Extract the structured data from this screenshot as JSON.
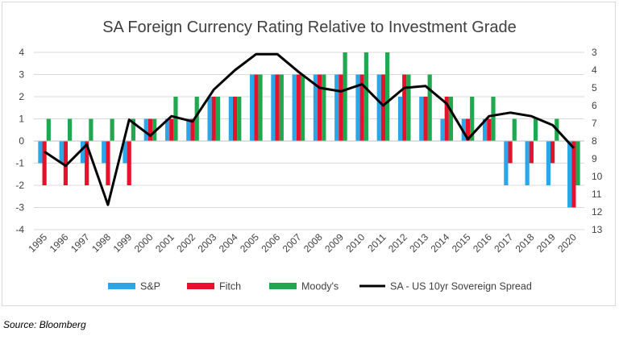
{
  "source_note": "Source: Bloomberg",
  "colors": {
    "sp": "#2aa7e8",
    "fitch": "#e8112d",
    "moodys": "#1fa84f",
    "spread": "#000000",
    "grid": "#d9d9d9"
  },
  "chart_data": {
    "type": "bar",
    "title": "SA Foreign Currency Rating Relative to Investment Grade",
    "categories": [
      "1995",
      "1996",
      "1997",
      "1998",
      "1999",
      "2000",
      "2001",
      "2002",
      "2003",
      "2004",
      "2005",
      "2006",
      "2007",
      "2008",
      "2009",
      "2010",
      "2011",
      "2012",
      "2013",
      "2014",
      "2015",
      "2016",
      "2017",
      "2018",
      "2019",
      "2020"
    ],
    "ylim": [
      -4,
      4
    ],
    "yticks": [
      4,
      3,
      2,
      1,
      0,
      -1,
      -2,
      -3,
      -4
    ],
    "y2lim": [
      3,
      13
    ],
    "y2ticks": [
      3,
      4,
      5,
      6,
      7,
      8,
      9,
      10,
      11,
      12,
      13
    ],
    "y2_inverted": true,
    "grid": true,
    "legend_position": "bottom",
    "series": [
      {
        "name": "S&P",
        "kind": "bar",
        "color_key": "sp",
        "values": [
          -1,
          -1,
          -1,
          -1,
          -1,
          1,
          1,
          1,
          2,
          2,
          3,
          3,
          3,
          3,
          3,
          3,
          3,
          2,
          2,
          1,
          1,
          1,
          -2,
          -2,
          -2,
          -3
        ]
      },
      {
        "name": "Fitch",
        "kind": "bar",
        "color_key": "fitch",
        "values": [
          -2,
          -2,
          -2,
          -2,
          -2,
          1,
          1,
          1,
          2,
          2,
          3,
          3,
          3,
          3,
          3,
          3,
          3,
          3,
          2,
          2,
          1,
          1,
          -1,
          -1,
          -1,
          -3
        ]
      },
      {
        "name": "Moody's",
        "kind": "bar",
        "color_key": "moodys",
        "values": [
          1,
          1,
          1,
          1,
          1,
          1,
          2,
          2,
          2,
          2,
          3,
          3,
          3,
          3,
          4,
          4,
          4,
          3,
          3,
          2,
          2,
          2,
          1,
          1,
          1,
          -2
        ]
      },
      {
        "name": "SA - US 10yr Sovereign Spread",
        "kind": "line",
        "axis": "right",
        "color_key": "spread",
        "values": [
          8.6,
          9.4,
          8.2,
          11.6,
          6.8,
          7.7,
          6.6,
          6.9,
          5.1,
          4.0,
          3.1,
          3.1,
          4.1,
          5.0,
          5.2,
          4.8,
          6.0,
          5.0,
          4.9,
          5.9,
          7.9,
          6.6,
          6.4,
          6.6,
          7.1,
          8.4
        ]
      }
    ]
  }
}
